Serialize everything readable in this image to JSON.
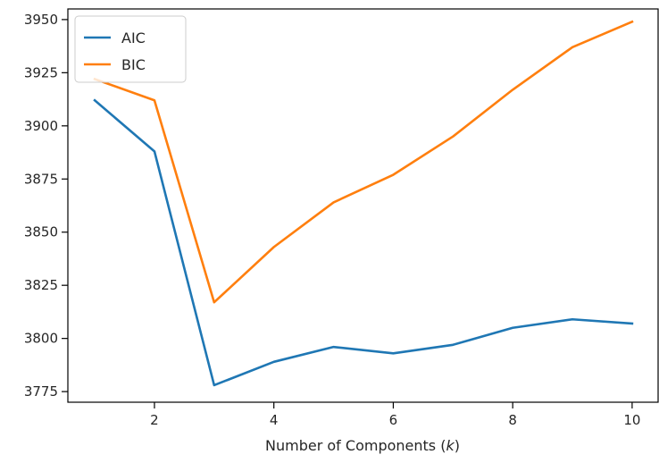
{
  "chart_data": {
    "type": "line",
    "title": "",
    "xlabel": "Number of Components (k)",
    "ylabel": "",
    "x": [
      1,
      2,
      3,
      4,
      5,
      6,
      7,
      8,
      9,
      10
    ],
    "xlim": [
      0.55,
      10.45
    ],
    "ylim": [
      3770,
      3955
    ],
    "xticks": [
      2,
      4,
      6,
      8,
      10
    ],
    "yticks": [
      3775,
      3800,
      3825,
      3850,
      3875,
      3900,
      3925,
      3950
    ],
    "grid": false,
    "legend_position": "top-left",
    "series": [
      {
        "name": "AIC",
        "color": "#1f77b4",
        "values": [
          3912,
          3888,
          3778,
          3789,
          3796,
          3793,
          3797,
          3805,
          3809,
          3807
        ]
      },
      {
        "name": "BIC",
        "color": "#ff7f0e",
        "values": [
          3922,
          3912,
          3817,
          3843,
          3864,
          3877,
          3895,
          3917,
          3937,
          3949
        ]
      }
    ]
  }
}
